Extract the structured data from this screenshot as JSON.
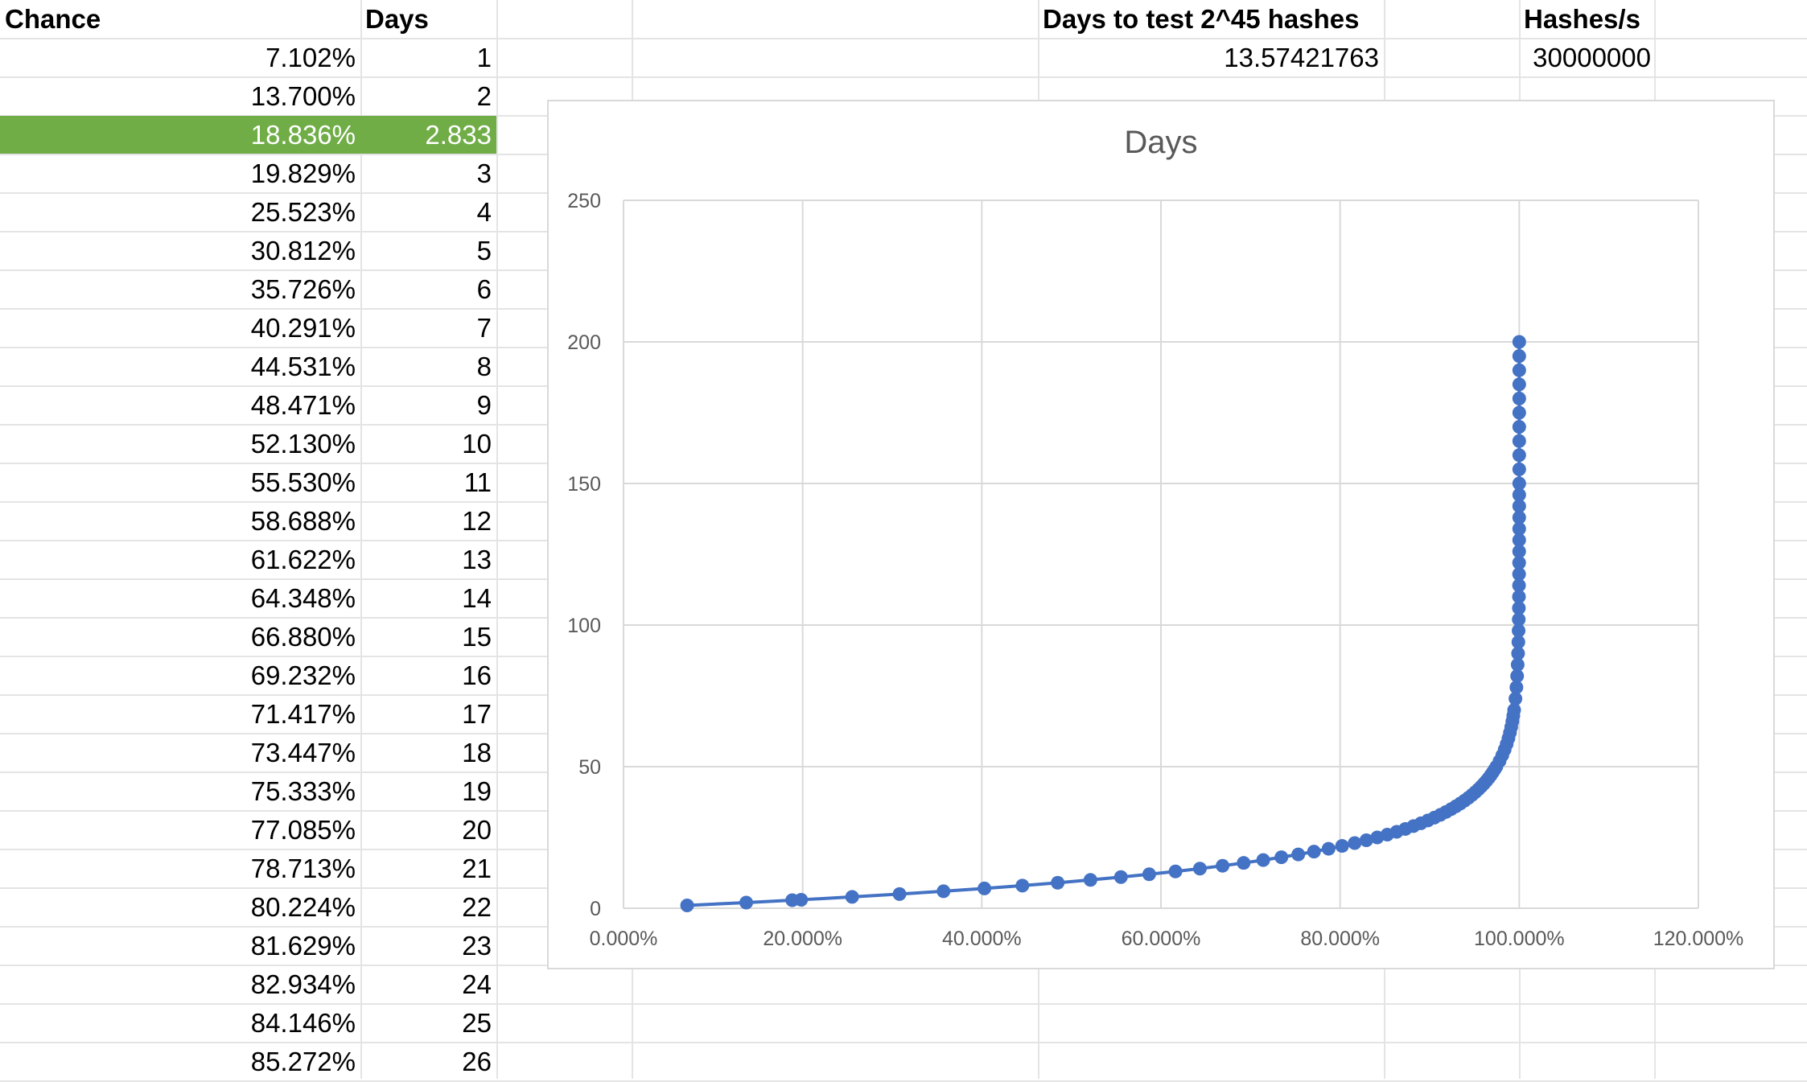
{
  "sheet": {
    "headers": {
      "chance": "Chance",
      "days": "Days",
      "days_to_test": "Days to test 2^45 hashes",
      "hashes_per_s": "Hashes/s"
    },
    "values": {
      "days_to_test": "13.57421763",
      "hashes_per_s": "30000000"
    },
    "highlight_row": {
      "chance": "18.836%",
      "days": "2.833",
      "color": "#70ad47"
    },
    "rows": [
      {
        "chance": "7.102%",
        "days": "1"
      },
      {
        "chance": "13.700%",
        "days": "2"
      },
      {
        "chance": "19.829%",
        "days": "3"
      },
      {
        "chance": "25.523%",
        "days": "4"
      },
      {
        "chance": "30.812%",
        "days": "5"
      },
      {
        "chance": "35.726%",
        "days": "6"
      },
      {
        "chance": "40.291%",
        "days": "7"
      },
      {
        "chance": "44.531%",
        "days": "8"
      },
      {
        "chance": "48.471%",
        "days": "9"
      },
      {
        "chance": "52.130%",
        "days": "10"
      },
      {
        "chance": "55.530%",
        "days": "11"
      },
      {
        "chance": "58.688%",
        "days": "12"
      },
      {
        "chance": "61.622%",
        "days": "13"
      },
      {
        "chance": "64.348%",
        "days": "14"
      },
      {
        "chance": "66.880%",
        "days": "15"
      },
      {
        "chance": "69.232%",
        "days": "16"
      },
      {
        "chance": "71.417%",
        "days": "17"
      },
      {
        "chance": "73.447%",
        "days": "18"
      },
      {
        "chance": "75.333%",
        "days": "19"
      },
      {
        "chance": "77.085%",
        "days": "20"
      },
      {
        "chance": "78.713%",
        "days": "21"
      },
      {
        "chance": "80.224%",
        "days": "22"
      },
      {
        "chance": "81.629%",
        "days": "23"
      },
      {
        "chance": "82.934%",
        "days": "24"
      },
      {
        "chance": "84.146%",
        "days": "25"
      },
      {
        "chance": "85.272%",
        "days": "26"
      }
    ]
  },
  "chart_data": {
    "type": "scatter",
    "title": "Days",
    "xlabel": "",
    "ylabel": "",
    "xlim": [
      0,
      120
    ],
    "ylim": [
      0,
      250
    ],
    "x_ticks": [
      "0.000%",
      "20.000%",
      "40.000%",
      "60.000%",
      "80.000%",
      "100.000%",
      "120.000%"
    ],
    "y_ticks": [
      "0",
      "50",
      "100",
      "150",
      "200",
      "250"
    ],
    "grid": true,
    "legend": "none",
    "marker_color": "#4472c4",
    "series": [
      {
        "x_unit": "percent",
        "points": [
          [
            7.102,
            1
          ],
          [
            13.7,
            2
          ],
          [
            18.836,
            2.833
          ],
          [
            19.829,
            3
          ],
          [
            25.523,
            4
          ],
          [
            30.812,
            5
          ],
          [
            35.726,
            6
          ],
          [
            40.291,
            7
          ],
          [
            44.531,
            8
          ],
          [
            48.471,
            9
          ],
          [
            52.13,
            10
          ],
          [
            55.53,
            11
          ],
          [
            58.688,
            12
          ],
          [
            61.622,
            13
          ],
          [
            64.348,
            14
          ],
          [
            66.88,
            15
          ],
          [
            69.232,
            16
          ],
          [
            71.417,
            17
          ],
          [
            73.447,
            18
          ],
          [
            75.333,
            19
          ],
          [
            77.085,
            20
          ],
          [
            78.713,
            21
          ],
          [
            80.224,
            22
          ],
          [
            81.629,
            23
          ],
          [
            82.934,
            24
          ],
          [
            84.146,
            25
          ],
          [
            85.272,
            26
          ],
          [
            86.318,
            27
          ],
          [
            87.289,
            28
          ],
          [
            88.191,
            29
          ],
          [
            89.028,
            30
          ],
          [
            89.806,
            31
          ],
          [
            90.528,
            32
          ],
          [
            91.199,
            33
          ],
          [
            91.822,
            34
          ],
          [
            92.4,
            35
          ],
          [
            92.937,
            36
          ],
          [
            93.436,
            37
          ],
          [
            93.899,
            38
          ],
          [
            94.329,
            39
          ],
          [
            94.728,
            40
          ],
          [
            95.099,
            41
          ],
          [
            95.443,
            42
          ],
          [
            95.763,
            43
          ],
          [
            96.06,
            44
          ],
          [
            96.336,
            45
          ],
          [
            96.592,
            46
          ],
          [
            96.83,
            47
          ],
          [
            97.051,
            48
          ],
          [
            97.256,
            49
          ],
          [
            97.447,
            50
          ],
          [
            97.802,
            52
          ],
          [
            98.108,
            54
          ],
          [
            98.371,
            56
          ],
          [
            98.598,
            58
          ],
          [
            98.794,
            60
          ],
          [
            98.962,
            62
          ],
          [
            99.107,
            64
          ],
          [
            99.231,
            66
          ],
          [
            99.338,
            68
          ],
          [
            99.43,
            70
          ],
          [
            99.576,
            74
          ],
          [
            99.684,
            78
          ],
          [
            99.765,
            82
          ],
          [
            99.825,
            86
          ],
          [
            99.87,
            90
          ],
          [
            99.903,
            94
          ],
          [
            99.928,
            98
          ],
          [
            99.946,
            102
          ],
          [
            99.96,
            106
          ],
          [
            99.97,
            110
          ],
          [
            99.978,
            114
          ],
          [
            99.983,
            118
          ],
          [
            99.988,
            122
          ],
          [
            99.991,
            126
          ],
          [
            99.993,
            130
          ],
          [
            99.995,
            134
          ],
          [
            99.996,
            138
          ],
          [
            99.997,
            142
          ],
          [
            99.998,
            146
          ],
          [
            99.9985,
            150
          ],
          [
            99.999,
            155
          ],
          [
            99.9993,
            160
          ],
          [
            99.9995,
            165
          ],
          [
            99.9997,
            170
          ],
          [
            99.9998,
            175
          ],
          [
            99.9999,
            180
          ],
          [
            99.99993,
            185
          ],
          [
            99.99996,
            190
          ],
          [
            99.99998,
            195
          ],
          [
            99.99999,
            200
          ]
        ]
      }
    ]
  }
}
